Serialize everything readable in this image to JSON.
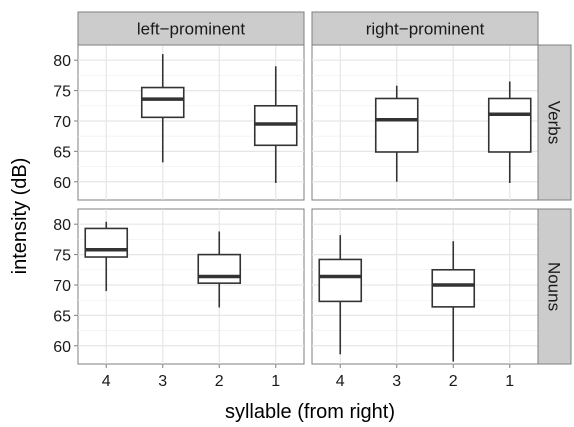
{
  "chart_data": {
    "type": "boxplot",
    "xlabel": "syllable (from right)",
    "ylabel": "intensity (dB)",
    "x_categories": [
      "4",
      "3",
      "2",
      "1"
    ],
    "ylim": [
      57,
      82.5
    ],
    "yticks": [
      60,
      65,
      70,
      75,
      80
    ],
    "grid": true,
    "facet_columns": [
      "left−prominent",
      "right−prominent"
    ],
    "facet_rows": [
      "Verbs",
      "Nouns"
    ],
    "panels": [
      {
        "column": "left−prominent",
        "row": "Verbs",
        "boxes": [
          {
            "x": "3",
            "min": 63.2,
            "q1": 70.6,
            "median": 73.6,
            "q3": 75.5,
            "max": 81.0
          },
          {
            "x": "1",
            "min": 59.8,
            "q1": 66.0,
            "median": 69.5,
            "q3": 72.5,
            "max": 79.0
          }
        ]
      },
      {
        "column": "right−prominent",
        "row": "Verbs",
        "boxes": [
          {
            "x": "3",
            "min": 60.0,
            "q1": 64.9,
            "median": 70.2,
            "q3": 73.7,
            "max": 75.8
          },
          {
            "x": "1",
            "min": 59.8,
            "q1": 64.9,
            "median": 71.1,
            "q3": 73.7,
            "max": 76.5
          }
        ]
      },
      {
        "column": "left−prominent",
        "row": "Nouns",
        "boxes": [
          {
            "x": "4",
            "min": 69.0,
            "q1": 74.6,
            "median": 75.8,
            "q3": 79.3,
            "max": 80.4
          },
          {
            "x": "2",
            "min": 66.3,
            "q1": 70.3,
            "median": 71.4,
            "q3": 75.0,
            "max": 78.8
          }
        ]
      },
      {
        "column": "right−prominent",
        "row": "Nouns",
        "boxes": [
          {
            "x": "4",
            "min": 58.6,
            "q1": 67.3,
            "median": 71.4,
            "q3": 74.2,
            "max": 78.2
          },
          {
            "x": "2",
            "min": 57.4,
            "q1": 66.4,
            "median": 70.0,
            "q3": 72.5,
            "max": 77.2
          }
        ]
      }
    ]
  }
}
